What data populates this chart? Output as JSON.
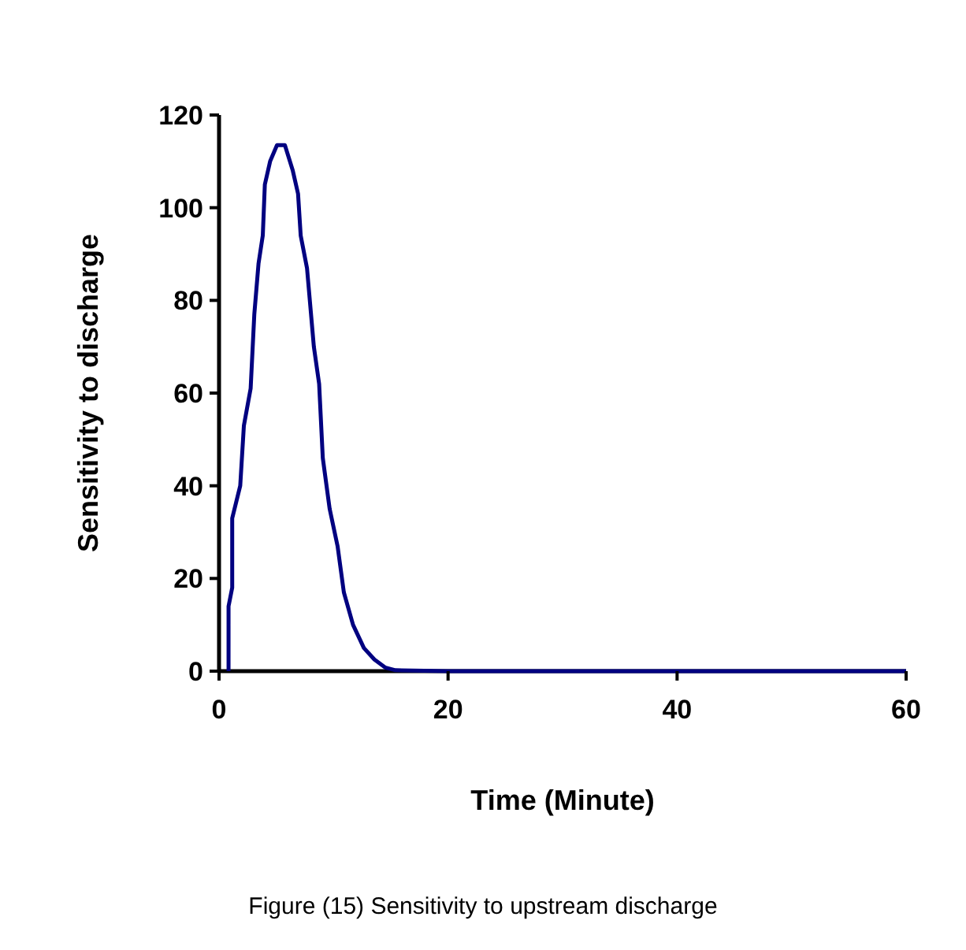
{
  "chart_data": {
    "type": "line",
    "xlabel": "Time (Minute)",
    "ylabel": "Sensitivity to discharge",
    "annotations": [
      "Figure (15) Sensitivity to upstream discharge"
    ],
    "x": [
      0.83,
      0.83,
      1.15,
      1.15,
      1.85,
      2.17,
      2.76,
      3.08,
      3.45,
      3.82,
      4.0,
      4.46,
      5.06,
      5.75,
      6.44,
      6.9,
      7.13,
      7.68,
      8.28,
      8.74,
      9.06,
      9.66,
      10.35,
      10.9,
      11.7,
      12.65,
      13.57,
      14.5,
      15.4,
      20,
      40,
      60
    ],
    "series": [
      {
        "color": "#000080",
        "values": [
          0,
          14,
          18,
          33,
          40,
          53,
          61,
          77,
          88,
          94,
          105,
          110,
          113.5,
          113.5,
          108,
          103,
          94,
          87,
          70,
          62,
          46,
          35,
          27,
          17,
          10,
          5,
          2.5,
          0.8,
          0.2,
          0,
          0,
          0
        ]
      }
    ],
    "xlim": [
      0,
      60
    ],
    "xticks": [
      0,
      20,
      40,
      60
    ],
    "ylim": [
      0,
      120
    ],
    "yticks": [
      0,
      20,
      40,
      60,
      80,
      100,
      120
    ],
    "grid": false,
    "marker": "none",
    "line_style": "solid"
  }
}
